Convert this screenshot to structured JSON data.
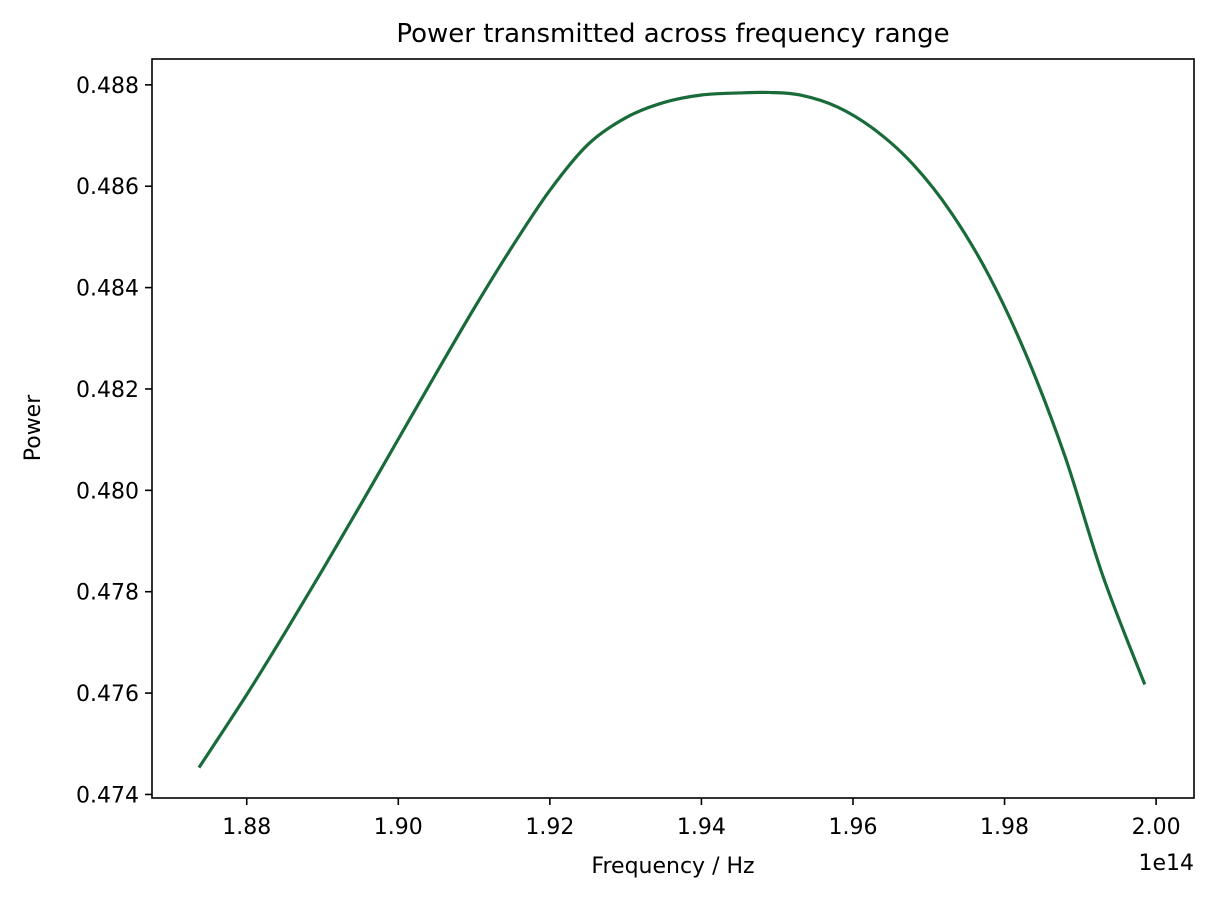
{
  "chart_data": {
    "type": "line",
    "title": "Power transmitted across frequency range",
    "xlabel": "Frequency / Hz",
    "ylabel": "Power",
    "x_offset_label": "1e14",
    "xlim": [
      1.8675,
      2.005
    ],
    "ylim": [
      0.47393,
      0.48851
    ],
    "x_ticks": [
      1.88,
      1.9,
      1.92,
      1.94,
      1.96,
      1.98,
      2.0
    ],
    "x_tick_labels": [
      "1.88",
      "1.90",
      "1.92",
      "1.94",
      "1.96",
      "1.98",
      "2.00"
    ],
    "y_ticks": [
      0.474,
      0.476,
      0.478,
      0.48,
      0.482,
      0.484,
      0.486,
      0.488
    ],
    "y_tick_labels": [
      "0.474",
      "0.476",
      "0.478",
      "0.480",
      "0.482",
      "0.484",
      "0.486",
      "0.488"
    ],
    "grid": false,
    "series": [
      {
        "color": "#1a6b3a",
        "x": [
          1.8737,
          1.88,
          1.885,
          1.89,
          1.895,
          1.9,
          1.905,
          1.91,
          1.915,
          1.92,
          1.925,
          1.93,
          1.935,
          1.94,
          1.945,
          1.9489,
          1.953,
          1.958,
          1.963,
          1.968,
          1.973,
          1.978,
          1.983,
          1.988,
          1.993,
          1.9985
        ],
        "y": [
          0.47453,
          0.47597,
          0.47718,
          0.47843,
          0.47971,
          0.48101,
          0.48231,
          0.48359,
          0.4848,
          0.48592,
          0.48682,
          0.48735,
          0.48765,
          0.4878,
          0.48784,
          0.48785,
          0.4878,
          0.48756,
          0.4871,
          0.48642,
          0.48547,
          0.48422,
          0.48262,
          0.48066,
          0.4783,
          0.47617
        ]
      }
    ]
  }
}
